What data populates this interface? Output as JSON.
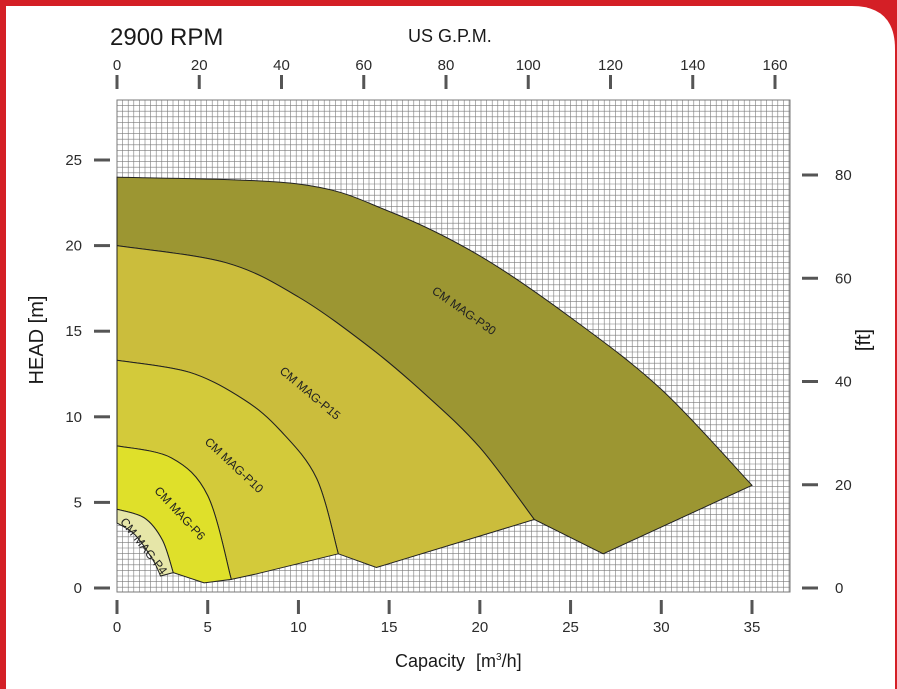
{
  "chart_data": {
    "type": "area",
    "title": "2900 RPM",
    "top_axis": {
      "label": "US G.P.M.",
      "range": [
        0,
        160
      ],
      "ticks": [
        "0",
        "20",
        "40",
        "60",
        "80",
        "100",
        "120",
        "140",
        "160"
      ]
    },
    "x_axis": {
      "label": "Capacity",
      "unit_base": "[m",
      "unit_sup": "3",
      "unit_tail": "/h]",
      "range": [
        0,
        35
      ],
      "ticks": [
        "0",
        "5",
        "10",
        "15",
        "20",
        "25",
        "30",
        "35"
      ]
    },
    "y_axis": {
      "label": "HEAD [m]",
      "range": [
        0,
        25
      ],
      "ticks": [
        "0",
        "5",
        "10",
        "15",
        "20",
        "25"
      ]
    },
    "right_axis": {
      "label": "[ft]",
      "range": [
        0,
        80
      ],
      "ticks": [
        "0",
        "20",
        "40",
        "60",
        "80"
      ]
    },
    "grid": true,
    "series": [
      {
        "name": "CM MAG-P30",
        "color": "#9c9632",
        "outer": [
          [
            0,
            24.0
          ],
          [
            10,
            23.6
          ],
          [
            15,
            22.0
          ],
          [
            20,
            19.4
          ],
          [
            25,
            15.8
          ],
          [
            30,
            11.6
          ],
          [
            35,
            6.0
          ]
        ],
        "inner": [
          [
            0,
            20.0
          ],
          [
            6,
            19.0
          ],
          [
            10,
            17.0
          ],
          [
            14,
            14.0
          ],
          [
            17,
            11.3
          ],
          [
            20,
            8.2
          ],
          [
            23,
            4.0
          ]
        ],
        "bottom_edge": [
          [
            35,
            6.0
          ],
          [
            26.8,
            2.0
          ]
        ]
      },
      {
        "name": "CM MAG-P15",
        "color": "#cbbd3c",
        "outer": [
          [
            0,
            20.0
          ],
          [
            6,
            19.0
          ],
          [
            10,
            17.0
          ],
          [
            14,
            14.0
          ],
          [
            17,
            11.3
          ],
          [
            20,
            8.2
          ],
          [
            23,
            4.0
          ]
        ],
        "inner": [
          [
            0,
            13.3
          ],
          [
            4,
            12.6
          ],
          [
            7,
            11.0
          ],
          [
            9,
            9.2
          ],
          [
            11,
            6.4
          ],
          [
            12.2,
            2.0
          ]
        ],
        "bottom_edge": [
          [
            23,
            4.0
          ],
          [
            14.3,
            1.2
          ]
        ]
      },
      {
        "name": "CM MAG-P10",
        "color": "#d3ca3a",
        "outer": [
          [
            0,
            13.3
          ],
          [
            4,
            12.6
          ],
          [
            7,
            11.0
          ],
          [
            9,
            9.2
          ],
          [
            11,
            6.4
          ],
          [
            12.2,
            2.0
          ]
        ],
        "inner": [
          [
            0,
            8.3
          ],
          [
            3,
            7.6
          ],
          [
            5,
            5.4
          ],
          [
            6.3,
            0.5
          ]
        ],
        "bottom_edge": [
          [
            12.2,
            2.0
          ],
          [
            7.6,
            0.8
          ]
        ]
      },
      {
        "name": "CM MAG-P6",
        "color": "#dfe02a",
        "outer": [
          [
            0,
            8.3
          ],
          [
            3,
            7.6
          ],
          [
            5,
            5.4
          ],
          [
            6.3,
            0.5
          ]
        ],
        "inner": [
          [
            0,
            4.6
          ],
          [
            1.5,
            4.1
          ],
          [
            2.5,
            2.8
          ],
          [
            3.1,
            0.9
          ]
        ],
        "bottom_edge": [
          [
            6.3,
            0.5
          ],
          [
            4.8,
            0.3
          ]
        ]
      },
      {
        "name": "CM MAG-P4",
        "color": "#e6e6a8",
        "outer": [
          [
            0,
            4.6
          ],
          [
            1.5,
            4.1
          ],
          [
            2.5,
            2.8
          ],
          [
            3.1,
            0.9
          ]
        ],
        "inner": [
          [
            0,
            3.8
          ],
          [
            1.0,
            3.1
          ],
          [
            2.0,
            1.6
          ],
          [
            2.4,
            0.7
          ]
        ],
        "bottom_edge": [
          [
            3.1,
            0.9
          ],
          [
            2.4,
            0.7
          ]
        ]
      }
    ],
    "curve_labels": [
      "CM MAG-P30",
      "CM MAG-P15",
      "CM MAG-P10",
      "CM MAG-P6",
      "CM MAG-P4"
    ]
  },
  "colors": {
    "frame": "#d41f26",
    "card": "#ffffff",
    "grid": "#7a7a7a",
    "axis": "#555555",
    "curve_stroke": "#222222"
  }
}
